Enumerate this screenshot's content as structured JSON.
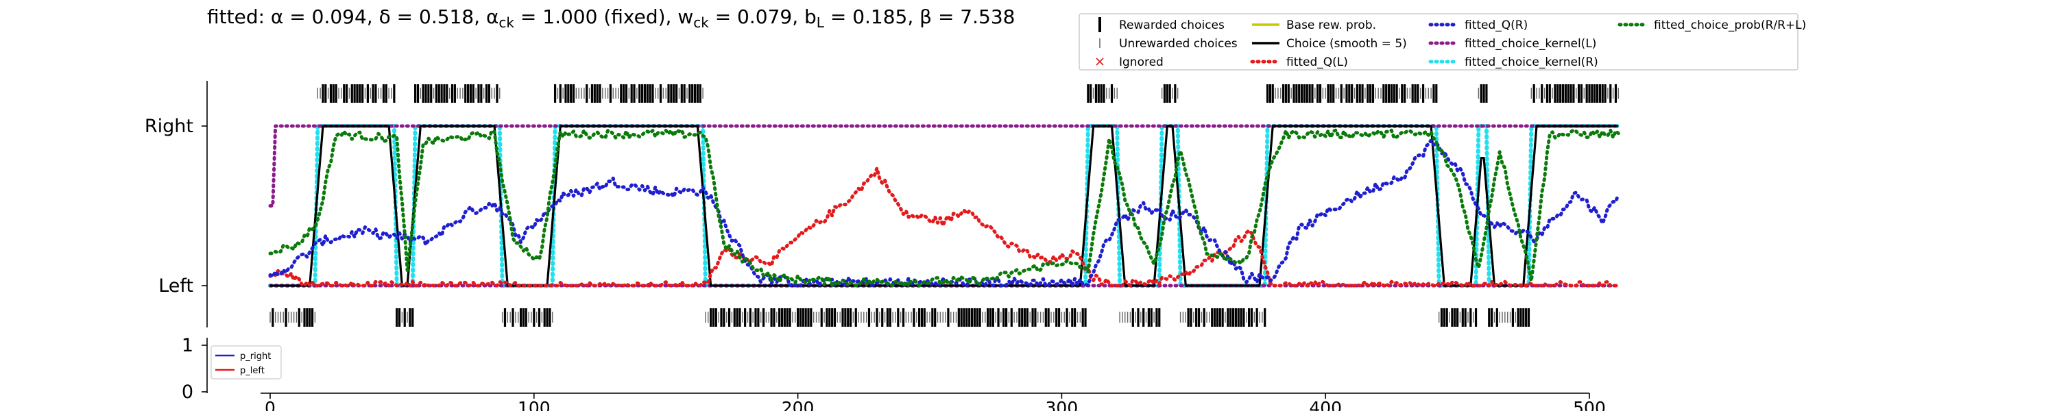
{
  "title": "fitted: α = 0.094, δ = 0.518, α_ck = 1.000 (fixed), w_ck = 0.079, b_L = 0.185, β = 7.538",
  "title_parts": [
    "fitted: α = 0.094, δ = 0.518, α",
    "ck",
    " = 1.000 (fixed), w",
    "ck",
    " = 0.079, b",
    "L",
    " = 0.185, β = 7.538"
  ],
  "chart_data": [
    {
      "type": "line",
      "title": "fitted: α = 0.094, δ = 0.518, α_ck = 1.000 (fixed), w_ck = 0.079, b_L = 0.185, β = 7.538",
      "xlabel": "",
      "ylabel": "",
      "xlim": [
        -6,
        512
      ],
      "ylim": [
        -0.35,
        1.35
      ],
      "ytick_labels": [
        "Left",
        "Right"
      ],
      "ytick_values": [
        0,
        1
      ],
      "grid": false,
      "legend_position": "top-right",
      "legend": [
        {
          "label": "Rewarded choices",
          "color": "#000000",
          "style": "tall-tick"
        },
        {
          "label": "Unrewarded choices",
          "color": "#555555",
          "style": "short-tick"
        },
        {
          "label": "Ignored",
          "color": "#e31a1c",
          "style": "x-marker"
        },
        {
          "label": "Base rew. prob.",
          "color": "#c8c800",
          "style": "solid"
        },
        {
          "label": "Choice (smooth = 5)",
          "color": "#000000",
          "style": "solid"
        },
        {
          "label": "fitted_Q(L)",
          "color": "#e31a1c",
          "style": "dotted"
        },
        {
          "label": "fitted_Q(R)",
          "color": "#1f1fd0",
          "style": "dotted"
        },
        {
          "label": "fitted_choice_kernel(L)",
          "color": "#8b1a8b",
          "style": "dotted"
        },
        {
          "label": "fitted_choice_kernel(R)",
          "color": "#22e0ee",
          "style": "dotted"
        },
        {
          "label": "fitted_choice_prob(R/R+L)",
          "color": "#0a7a0a",
          "style": "dotted"
        }
      ],
      "choice_blocks": [
        {
          "start": 0,
          "end": 5,
          "side": "L"
        },
        {
          "start": 5,
          "end": 18,
          "side": "L"
        },
        {
          "start": 18,
          "end": 48,
          "side": "R"
        },
        {
          "start": 48,
          "end": 55,
          "side": "L"
        },
        {
          "start": 55,
          "end": 88,
          "side": "R"
        },
        {
          "start": 88,
          "end": 108,
          "side": "L"
        },
        {
          "start": 108,
          "end": 165,
          "side": "R"
        },
        {
          "start": 165,
          "end": 310,
          "side": "L"
        },
        {
          "start": 310,
          "end": 322,
          "side": "R"
        },
        {
          "start": 322,
          "end": 338,
          "side": "L"
        },
        {
          "start": 338,
          "end": 345,
          "side": "R"
        },
        {
          "start": 345,
          "end": 378,
          "side": "L"
        },
        {
          "start": 378,
          "end": 443,
          "side": "R"
        },
        {
          "start": 443,
          "end": 458,
          "side": "L"
        },
        {
          "start": 458,
          "end": 462,
          "side": "R"
        },
        {
          "start": 462,
          "end": 478,
          "side": "L"
        },
        {
          "start": 478,
          "end": 512,
          "side": "R"
        }
      ],
      "series_q_right_keypoints": [
        [
          0,
          0.05
        ],
        [
          10,
          0.15
        ],
        [
          20,
          0.28
        ],
        [
          35,
          0.34
        ],
        [
          50,
          0.3
        ],
        [
          60,
          0.28
        ],
        [
          75,
          0.46
        ],
        [
          85,
          0.52
        ],
        [
          95,
          0.3
        ],
        [
          110,
          0.55
        ],
        [
          130,
          0.65
        ],
        [
          150,
          0.58
        ],
        [
          165,
          0.6
        ],
        [
          175,
          0.3
        ],
        [
          185,
          0.05
        ],
        [
          200,
          0.02
        ],
        [
          310,
          0.02
        ],
        [
          320,
          0.38
        ],
        [
          330,
          0.5
        ],
        [
          340,
          0.44
        ],
        [
          348,
          0.45
        ],
        [
          370,
          0.05
        ],
        [
          380,
          0.05
        ],
        [
          390,
          0.35
        ],
        [
          410,
          0.55
        ],
        [
          430,
          0.7
        ],
        [
          440,
          0.9
        ],
        [
          450,
          0.75
        ],
        [
          460,
          0.42
        ],
        [
          470,
          0.35
        ],
        [
          480,
          0.3
        ],
        [
          495,
          0.58
        ],
        [
          505,
          0.42
        ],
        [
          512,
          0.58
        ]
      ],
      "series_q_left_keypoints": [
        [
          0,
          0.08
        ],
        [
          8,
          0.06
        ],
        [
          15,
          0.0
        ],
        [
          50,
          0.0
        ],
        [
          165,
          0.0
        ],
        [
          172,
          0.22
        ],
        [
          180,
          0.18
        ],
        [
          190,
          0.15
        ],
        [
          200,
          0.3
        ],
        [
          210,
          0.42
        ],
        [
          222,
          0.58
        ],
        [
          230,
          0.72
        ],
        [
          240,
          0.45
        ],
        [
          255,
          0.4
        ],
        [
          265,
          0.48
        ],
        [
          280,
          0.25
        ],
        [
          295,
          0.15
        ],
        [
          305,
          0.2
        ],
        [
          312,
          0.05
        ],
        [
          320,
          0.0
        ],
        [
          345,
          0.05
        ],
        [
          360,
          0.2
        ],
        [
          372,
          0.35
        ],
        [
          380,
          0.0
        ],
        [
          512,
          0.0
        ]
      ],
      "series_kernel_left_keypoints": [
        [
          0,
          0.5
        ],
        [
          2,
          1.0
        ],
        [
          512,
          1.0
        ]
      ],
      "series_choice_prob_keypoints": [
        [
          0,
          0.22
        ],
        [
          10,
          0.25
        ],
        [
          18,
          0.4
        ],
        [
          25,
          0.95
        ],
        [
          48,
          0.92
        ],
        [
          52,
          0.1
        ],
        [
          58,
          0.9
        ],
        [
          85,
          0.95
        ],
        [
          92,
          0.3
        ],
        [
          102,
          0.15
        ],
        [
          110,
          0.95
        ],
        [
          165,
          0.95
        ],
        [
          172,
          0.25
        ],
        [
          190,
          0.05
        ],
        [
          220,
          0.02
        ],
        [
          270,
          0.03
        ],
        [
          300,
          0.15
        ],
        [
          310,
          0.1
        ],
        [
          318,
          0.9
        ],
        [
          325,
          0.5
        ],
        [
          335,
          0.12
        ],
        [
          345,
          0.85
        ],
        [
          355,
          0.2
        ],
        [
          370,
          0.15
        ],
        [
          380,
          0.8
        ],
        [
          385,
          0.95
        ],
        [
          440,
          0.95
        ],
        [
          450,
          0.65
        ],
        [
          458,
          0.1
        ],
        [
          466,
          0.85
        ],
        [
          478,
          0.05
        ],
        [
          485,
          0.95
        ],
        [
          512,
          0.95
        ]
      ]
    },
    {
      "type": "line",
      "title": "",
      "xlabel": "",
      "ylabel": "",
      "xlim": [
        -6,
        512
      ],
      "ylim": [
        0,
        1
      ],
      "ytick_labels": [
        "0",
        "1"
      ],
      "xtick_labels": [
        "0",
        "100",
        "200",
        "300",
        "400",
        "500"
      ],
      "xtick_values": [
        0,
        100,
        200,
        300,
        400,
        500
      ],
      "grid": false,
      "legend_position": "top-left",
      "series": [
        {
          "name": "p_right",
          "color": "#1f1fd0",
          "values": []
        },
        {
          "name": "p_left",
          "color": "#e31a1c",
          "values": []
        }
      ]
    }
  ]
}
